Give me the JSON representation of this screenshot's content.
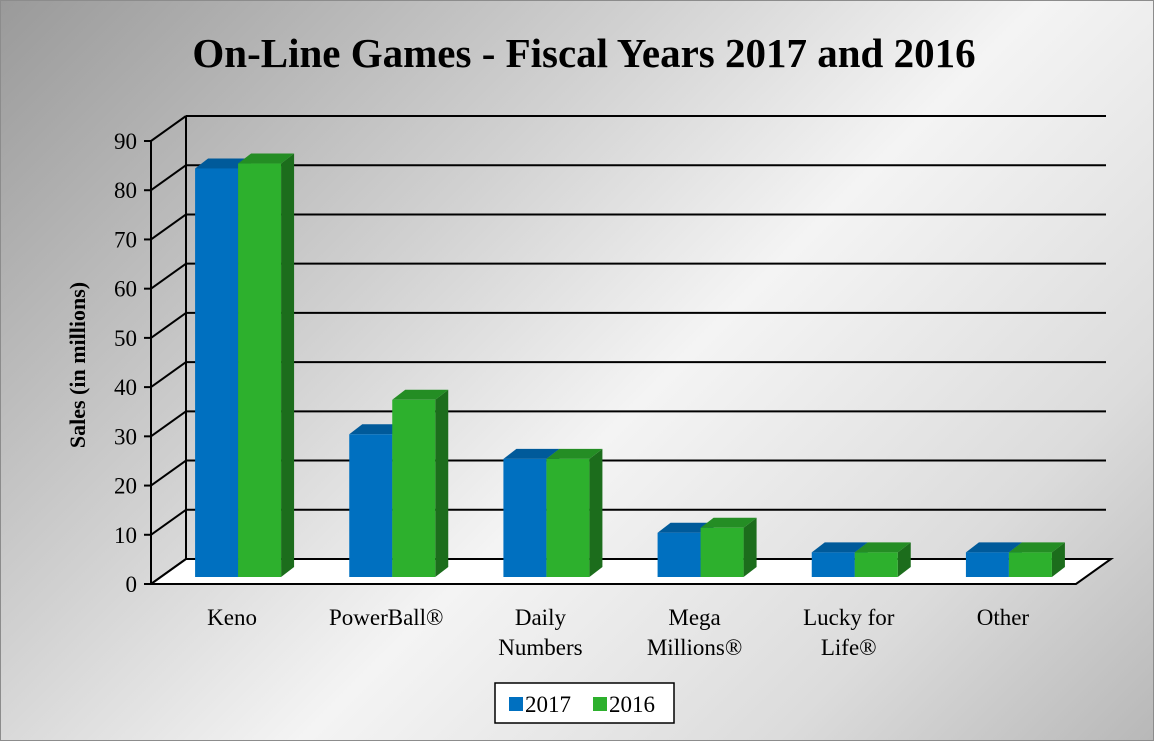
{
  "chart_data": {
    "type": "bar",
    "title": "On-Line Games - Fiscal Years 2017 and 2016",
    "xlabel": "",
    "ylabel": "Sales  (in millions)",
    "ylim": [
      0,
      90
    ],
    "yticks": [
      0,
      10,
      20,
      30,
      40,
      50,
      60,
      70,
      80,
      90
    ],
    "grid": true,
    "three_d": true,
    "legend_position": "bottom",
    "categories": [
      [
        "Keno"
      ],
      [
        "PowerBall®"
      ],
      [
        "Daily",
        "Numbers"
      ],
      [
        "Mega",
        "Millions®"
      ],
      [
        "Lucky for",
        "Life®"
      ],
      [
        "Other"
      ]
    ],
    "series": [
      {
        "name": "2017",
        "color": "#0070C0",
        "values": [
          83,
          29,
          24,
          9,
          5,
          5
        ]
      },
      {
        "name": "2016",
        "color": "#2DB02D",
        "values": [
          84,
          36,
          24,
          10,
          5,
          5
        ]
      }
    ]
  }
}
